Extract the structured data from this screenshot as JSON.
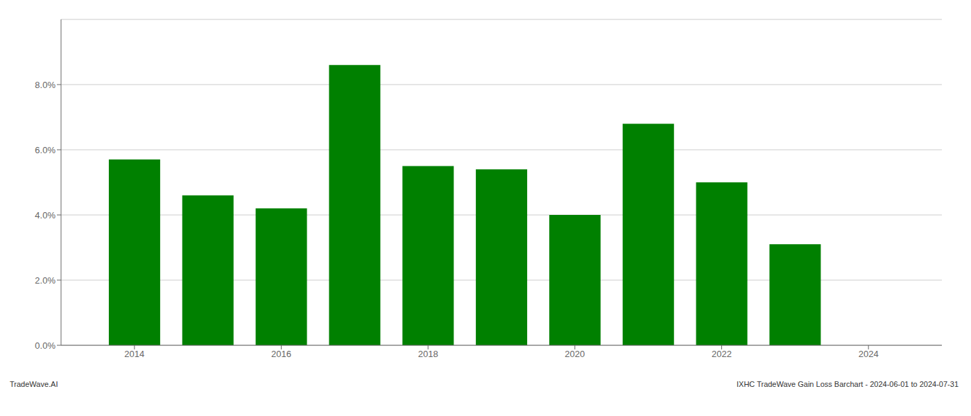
{
  "chart_data": {
    "type": "bar",
    "x": [
      2014,
      2015,
      2016,
      2017,
      2018,
      2019,
      2020,
      2021,
      2022,
      2023
    ],
    "values": [
      0.057,
      0.046,
      0.042,
      0.086,
      0.055,
      0.054,
      0.04,
      0.068,
      0.05,
      0.031
    ],
    "color": "#008000",
    "xlim": [
      2013.0,
      2025.0
    ],
    "xticks": [
      2014,
      2016,
      2018,
      2020,
      2022,
      2024
    ],
    "ylim": [
      0.0,
      0.1
    ],
    "yticks": [
      {
        "value": 0.0,
        "label": "0.0%"
      },
      {
        "value": 0.02,
        "label": "2.0%"
      },
      {
        "value": 0.04,
        "label": "4.0%"
      },
      {
        "value": 0.06,
        "label": "6.0%"
      },
      {
        "value": 0.08,
        "label": "8.0%"
      }
    ],
    "grid": true,
    "annotations": [
      "TradeWave.AI",
      "IXHC TradeWave Gain Loss Barchart - 2024-06-01 to 2024-07-31"
    ]
  }
}
